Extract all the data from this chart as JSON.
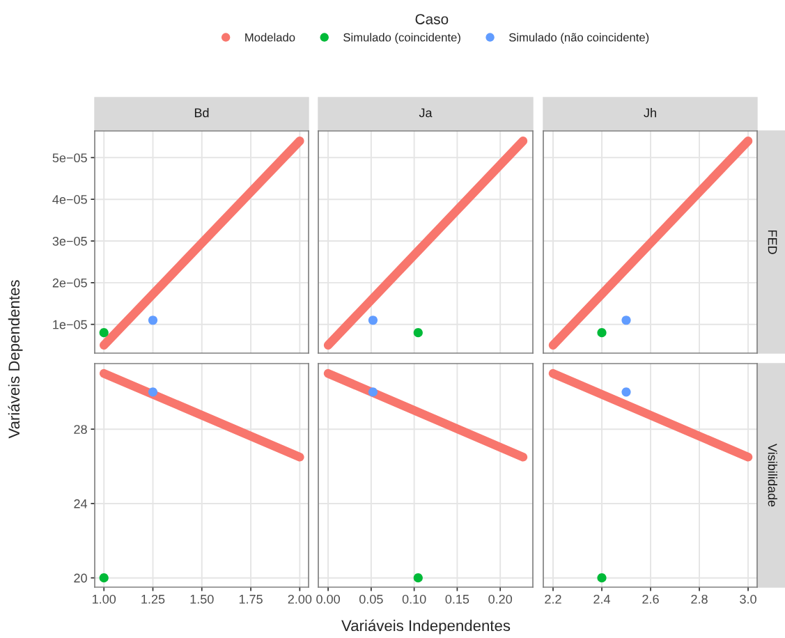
{
  "chart_data": [
    {
      "type": "scatter",
      "title": "Bd",
      "ylabel": "Variáveis Dependentes",
      "legend": "top",
      "legend_title": "Caso",
      "grid": true,
      "tick_labels": "y",
      "xlim": [
        0.953,
        2.045
      ],
      "xticks": [
        1.0,
        1.25,
        1.5,
        1.75,
        2.0
      ],
      "ylim": [
        3.1e-06,
        5.64e-05
      ],
      "yticks": [
        {
          "value": 1e-05,
          "label": "1e−05"
        },
        {
          "value": 2e-05,
          "label": "2e−05"
        },
        {
          "value": 3e-05,
          "label": "3e−05"
        },
        {
          "value": 4e-05,
          "label": "4e−05"
        },
        {
          "value": 5e-05,
          "label": "5e−05"
        }
      ],
      "series": [
        {
          "name": "Modelado",
          "type": "line",
          "color": "#f8766d",
          "x": [
            1.0,
            2.0
          ],
          "values": [
            5e-06,
            5.4e-05
          ]
        },
        {
          "name": "Simulado (coincidente)",
          "marker": "circle",
          "color": "#00ba38",
          "x": [
            1.0
          ],
          "values": [
            8e-06
          ]
        },
        {
          "name": "Simulado (não coincidente)",
          "marker": "circle",
          "color": "#619cff",
          "x": [
            1.25
          ],
          "values": [
            1.1e-05
          ]
        }
      ]
    },
    {
      "type": "scatter",
      "title": "Ja",
      "grid": true,
      "tick_labels": false,
      "xlim": [
        -0.0114,
        0.2379
      ],
      "xticks": [
        0.0,
        0.05,
        0.1,
        0.15,
        0.2
      ],
      "ylim": [
        3.1e-06,
        5.64e-05
      ],
      "yticks": [
        1e-05,
        2e-05,
        3e-05,
        4e-05,
        5e-05
      ],
      "series": [
        {
          "type": "line",
          "color": "#f8766d",
          "x": [
            0.0,
            0.2265
          ],
          "values": [
            5e-06,
            5.4e-05
          ]
        },
        {
          "marker": "circle",
          "color": "#00ba38",
          "x": [
            0.1046
          ],
          "values": [
            8e-06
          ]
        },
        {
          "marker": "circle",
          "color": "#619cff",
          "x": [
            0.0521
          ],
          "values": [
            1.1e-05
          ]
        }
      ]
    },
    {
      "type": "scatter",
      "title": "Jh",
      "y2label": "FED",
      "grid": true,
      "tick_labels": false,
      "xlim": [
        2.16,
        3.037
      ],
      "xticks": [
        2.2,
        2.4,
        2.6,
        2.8,
        3.0
      ],
      "ylim": [
        3.1e-06,
        5.64e-05
      ],
      "yticks": [
        1e-05,
        2e-05,
        3e-05,
        4e-05,
        5e-05
      ],
      "series": [
        {
          "type": "line",
          "color": "#f8766d",
          "x": [
            2.2,
            3.0
          ],
          "values": [
            5e-06,
            5.4e-05
          ]
        },
        {
          "marker": "circle",
          "color": "#00ba38",
          "x": [
            2.4
          ],
          "values": [
            8e-06
          ]
        },
        {
          "marker": "circle",
          "color": "#619cff",
          "x": [
            2.5
          ],
          "values": [
            1.1e-05
          ]
        }
      ]
    },
    {
      "type": "scatter",
      "grid": true,
      "xlim": [
        0.953,
        2.045
      ],
      "xticks": [
        {
          "value": 1.0,
          "label": "1.00"
        },
        {
          "value": 1.25,
          "label": "1.25"
        },
        {
          "value": 1.5,
          "label": "1.50"
        },
        {
          "value": 1.75,
          "label": "1.75"
        },
        {
          "value": 2.0,
          "label": "2.00"
        }
      ],
      "ylim": [
        19.5,
        31.53
      ],
      "yticks": [
        20,
        24,
        28
      ],
      "series": [
        {
          "type": "line",
          "color": "#f8766d",
          "x": [
            1.0,
            2.0
          ],
          "values": [
            31.0,
            26.5
          ]
        },
        {
          "marker": "circle",
          "color": "#00ba38",
          "x": [
            1.0
          ],
          "values": [
            20
          ]
        },
        {
          "marker": "circle",
          "color": "#619cff",
          "x": [
            1.25
          ],
          "values": [
            30.0
          ]
        }
      ]
    },
    {
      "type": "scatter",
      "xlabel": "Variáveis Independentes",
      "grid": true,
      "tick_labels": "x",
      "xlim": [
        -0.0114,
        0.2379
      ],
      "xticks": [
        {
          "value": 0.0,
          "label": "0.00"
        },
        {
          "value": 0.05,
          "label": "0.05"
        },
        {
          "value": 0.1,
          "label": "0.10"
        },
        {
          "value": 0.15,
          "label": "0.15"
        },
        {
          "value": 0.2,
          "label": "0.20"
        }
      ],
      "ylim": [
        19.5,
        31.53
      ],
      "yticks": [
        20,
        24,
        28
      ],
      "series": [
        {
          "type": "line",
          "color": "#f8766d",
          "x": [
            0.0,
            0.2265
          ],
          "values": [
            31.0,
            26.5
          ]
        },
        {
          "marker": "circle",
          "color": "#00ba38",
          "x": [
            0.1046
          ],
          "values": [
            20
          ]
        },
        {
          "marker": "circle",
          "color": "#619cff",
          "x": [
            0.0521
          ],
          "values": [
            30.0
          ]
        }
      ]
    },
    {
      "type": "scatter",
      "y2label": "Visibilidade",
      "grid": true,
      "tick_labels": "x",
      "xlim": [
        2.16,
        3.037
      ],
      "xticks": [
        2.2,
        2.4,
        2.6,
        2.8,
        {
          "value": 3.0,
          "label": "3.0"
        }
      ],
      "ylim": [
        19.5,
        31.53
      ],
      "yticks": [
        20,
        24,
        28
      ],
      "series": [
        {
          "type": "line",
          "color": "#f8766d",
          "x": [
            2.2,
            3.0
          ],
          "values": [
            31.0,
            26.5
          ]
        },
        {
          "marker": "circle",
          "color": "#00ba38",
          "x": [
            2.4
          ],
          "values": [
            20
          ]
        },
        {
          "marker": "circle",
          "color": "#619cff",
          "x": [
            2.5
          ],
          "values": [
            30.0
          ]
        }
      ]
    }
  ]
}
